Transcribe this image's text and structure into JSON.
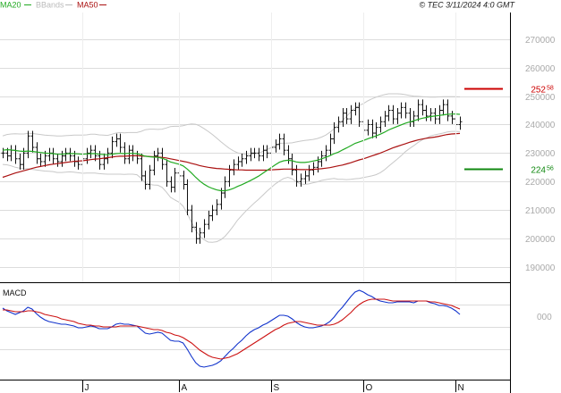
{
  "header": {
    "legend": [
      {
        "label": "MA20",
        "color": "#22aa22"
      },
      {
        "label": "BBands",
        "color": "#bbbbbb"
      },
      {
        "label": "MA50",
        "color": "#aa1111"
      }
    ],
    "timestamp": "© TEC 3/11/2024 4:0 GMT"
  },
  "chart_data": [
    {
      "type": "ohlc",
      "y_tick_labels": [
        "190000",
        "200000",
        "210000",
        "220000",
        "230000",
        "240000",
        "250000",
        "260000",
        "270000"
      ],
      "ylim": [
        185000,
        279000
      ],
      "x_tick_labels": [
        "J",
        "A",
        "S",
        "O",
        "N"
      ],
      "levels": [
        {
          "label": "252.58",
          "text_main": "252",
          "text_dec": "58",
          "value": 252580,
          "color": "#cc0000"
        },
        {
          "label": "224.56",
          "text_main": "224",
          "text_dec": "56",
          "value": 224560,
          "color": "#118811"
        }
      ],
      "closes": [
        230000,
        229000,
        231000,
        228000,
        226000,
        230000,
        236000,
        232000,
        228000,
        227000,
        229000,
        230000,
        228000,
        227000,
        229000,
        230000,
        229000,
        227000,
        226000,
        228000,
        230000,
        231000,
        229000,
        226000,
        228000,
        230000,
        234000,
        235000,
        232000,
        228000,
        231000,
        229000,
        228000,
        222000,
        219000,
        224000,
        229000,
        230000,
        226000,
        220000,
        218000,
        223000,
        222000,
        219000,
        210000,
        204000,
        200000,
        202000,
        205000,
        208000,
        210000,
        212000,
        216000,
        220000,
        224000,
        226000,
        227000,
        228000,
        229000,
        230000,
        230000,
        229000,
        231000,
        230000,
        232000,
        233000,
        235000,
        231000,
        228000,
        224000,
        220000,
        221000,
        222000,
        224000,
        225000,
        227000,
        229000,
        231000,
        235000,
        239000,
        241000,
        244000,
        242000,
        245000,
        246000,
        241000,
        238000,
        240000,
        237000,
        239000,
        241000,
        243000,
        245000,
        242000,
        244000,
        246000,
        244000,
        241000,
        243000,
        247000,
        245000,
        243000,
        244000,
        242000,
        245000,
        247000,
        243000,
        242000,
        240000,
        241000
      ],
      "ma20": [
        231000,
        231200,
        231100,
        230900,
        230700,
        230600,
        230700,
        230600,
        230400,
        230200,
        230000,
        229900,
        229800,
        229600,
        229600,
        229700,
        229800,
        229800,
        229700,
        229600,
        229700,
        229800,
        229800,
        229600,
        229500,
        229400,
        229600,
        229800,
        229900,
        229800,
        229900,
        229900,
        229800,
        229400,
        228900,
        228700,
        228600,
        228500,
        228200,
        227600,
        226900,
        226500,
        226100,
        225500,
        224400,
        223000,
        221500,
        220200,
        219100,
        218200,
        217600,
        217100,
        216800,
        216800,
        217100,
        217600,
        218300,
        218900,
        219600,
        220300,
        221100,
        221900,
        222900,
        223900,
        224900,
        225900,
        226800,
        227300,
        227500,
        227300,
        226900,
        226700,
        226700,
        226900,
        227200,
        227500,
        228000,
        228500,
        229100,
        229800,
        230300,
        231100,
        231800,
        232600,
        233400,
        233900,
        234400,
        235000,
        235500,
        236000,
        236600,
        237300,
        238100,
        238700,
        239300,
        239900,
        240500,
        240900,
        241300,
        241800,
        242200,
        242500,
        242800,
        243000,
        243200,
        243400,
        243600,
        243700,
        243700,
        243600
      ],
      "ma50": [
        221500,
        222000,
        222500,
        223000,
        223400,
        223800,
        224200,
        224600,
        225000,
        225300,
        225600,
        225900,
        226100,
        226300,
        226500,
        226700,
        226900,
        227100,
        227200,
        227300,
        227500,
        227700,
        227900,
        228000,
        228200,
        228400,
        228600,
        228800,
        228900,
        228900,
        229000,
        229100,
        229100,
        229000,
        228900,
        228800,
        228700,
        228600,
        228500,
        228300,
        228000,
        227700,
        227400,
        227100,
        226800,
        226400,
        226000,
        225600,
        225300,
        225000,
        224800,
        224600,
        224500,
        224400,
        224300,
        224200,
        224100,
        224100,
        224000,
        224000,
        224000,
        224000,
        224000,
        224000,
        224100,
        224200,
        224300,
        224400,
        224400,
        224400,
        224300,
        224200,
        224200,
        224200,
        224300,
        224400,
        224500,
        224700,
        224900,
        225200,
        225500,
        225800,
        226200,
        226600,
        227100,
        227600,
        228000,
        228500,
        229000,
        229500,
        230000,
        230600,
        231200,
        231800,
        232300,
        232800,
        233300,
        233800,
        234200,
        234600,
        234900,
        235200,
        235400,
        235600,
        235900,
        236200,
        236500,
        236700,
        236800,
        236900
      ],
      "bb_upper": [
        236000,
        236500,
        236700,
        236800,
        236700,
        236700,
        236900,
        236900,
        236700,
        236500,
        236300,
        236200,
        236100,
        236000,
        236000,
        236100,
        236200,
        236300,
        236300,
        236300,
        236400,
        236600,
        236600,
        236400,
        236300,
        236200,
        236600,
        237000,
        237200,
        237100,
        237200,
        237200,
        237200,
        237600,
        238200,
        238400,
        238400,
        238300,
        238400,
        238800,
        239300,
        239400,
        239400,
        239600,
        240000,
        240200,
        240100,
        239500,
        238600,
        237600,
        236500,
        235300,
        234000,
        232800,
        231700,
        230800,
        230100,
        229700,
        229500,
        229500,
        229700,
        230000,
        230600,
        231200,
        231900,
        232600,
        233400,
        233500,
        233500,
        233600,
        233900,
        234200,
        234400,
        234600,
        234800,
        235100,
        235600,
        236300,
        237300,
        238500,
        239800,
        241400,
        242900,
        244400,
        245800,
        246700,
        247400,
        248300,
        249000,
        249600,
        250100,
        250500,
        250800,
        250800,
        250800,
        250700,
        250500,
        250200,
        250000,
        249900,
        249800,
        249700,
        249600,
        249600,
        249700,
        249800,
        249800,
        249800,
        249800,
        249700
      ],
      "bb_lower": [
        226000,
        225900,
        225500,
        225000,
        224700,
        224500,
        224500,
        224300,
        224100,
        223900,
        223700,
        223600,
        223500,
        223200,
        223200,
        223300,
        223400,
        223300,
        223100,
        222900,
        223000,
        223000,
        223000,
        222800,
        222700,
        222600,
        222600,
        222600,
        222600,
        222500,
        222600,
        222600,
        222400,
        221200,
        219600,
        219000,
        218800,
        218700,
        218000,
        216400,
        214500,
        213600,
        212800,
        211400,
        208800,
        205800,
        202900,
        200900,
        199600,
        198800,
        198700,
        198900,
        199600,
        200800,
        202500,
        204400,
        206500,
        208100,
        209700,
        211100,
        212500,
        213800,
        215200,
        216600,
        217900,
        219200,
        220200,
        221100,
        221500,
        221000,
        219900,
        219200,
        219000,
        219200,
        219600,
        219900,
        220400,
        220700,
        220900,
        221100,
        220800,
        220800,
        220700,
        220800,
        221000,
        221100,
        221400,
        221700,
        222000,
        222400,
        223100,
        224100,
        225400,
        226600,
        227800,
        229100,
        230500,
        231600,
        232600,
        233700,
        234600,
        235300,
        236000,
        236400,
        236700,
        237000,
        237400,
        237600,
        237600,
        237500
      ]
    },
    {
      "type": "line",
      "title": "MACD",
      "y_tick_labels": [
        "000"
      ],
      "x_tick_labels": [
        "J",
        "A",
        "S",
        "O",
        "N"
      ],
      "series": [
        {
          "color": "#1133cc",
          "values": [
            900,
            600,
            400,
            200,
            400,
            600,
            1000,
            800,
            300,
            -100,
            -400,
            -600,
            -700,
            -800,
            -900,
            -900,
            -1000,
            -1100,
            -1300,
            -1300,
            -1200,
            -1100,
            -1200,
            -1400,
            -1400,
            -1400,
            -1200,
            -900,
            -800,
            -900,
            -900,
            -1000,
            -1100,
            -1500,
            -1900,
            -2000,
            -1900,
            -1800,
            -1900,
            -2300,
            -2700,
            -2800,
            -2800,
            -3000,
            -3700,
            -4500,
            -5200,
            -5600,
            -5700,
            -5600,
            -5500,
            -5300,
            -5000,
            -4500,
            -4000,
            -3600,
            -3100,
            -2700,
            -2200,
            -1800,
            -1500,
            -1300,
            -1000,
            -800,
            -500,
            -200,
            100,
            100,
            0,
            -300,
            -700,
            -1000,
            -1200,
            -1300,
            -1300,
            -1200,
            -1100,
            -900,
            -600,
            -100,
            500,
            1000,
            1600,
            2200,
            2700,
            2900,
            2700,
            2400,
            2200,
            1900,
            1700,
            1600,
            1500,
            1500,
            1600,
            1600,
            1600,
            1600,
            1500,
            1700,
            1700,
            1700,
            1500,
            1400,
            1200,
            1200,
            1100,
            900,
            600,
            200
          ]
        },
        {
          "color": "#cc1111",
          "values": [
            700,
            700,
            600,
            500,
            500,
            500,
            600,
            600,
            500,
            400,
            200,
            100,
            0,
            -100,
            -300,
            -400,
            -500,
            -600,
            -800,
            -900,
            -1000,
            -1000,
            -1100,
            -1100,
            -1200,
            -1200,
            -1200,
            -1200,
            -1100,
            -1100,
            -1100,
            -1100,
            -1100,
            -1200,
            -1300,
            -1400,
            -1500,
            -1500,
            -1600,
            -1800,
            -1900,
            -2100,
            -2200,
            -2400,
            -2700,
            -3000,
            -3400,
            -3800,
            -4100,
            -4400,
            -4600,
            -4700,
            -4800,
            -4700,
            -4600,
            -4400,
            -4200,
            -3900,
            -3600,
            -3300,
            -3000,
            -2700,
            -2400,
            -2100,
            -1800,
            -1500,
            -1300,
            -1000,
            -800,
            -700,
            -600,
            -600,
            -700,
            -800,
            -900,
            -1000,
            -1000,
            -1000,
            -1000,
            -900,
            -700,
            -400,
            0,
            400,
            900,
            1300,
            1600,
            1800,
            1900,
            1900,
            1900,
            1900,
            1800,
            1700,
            1700,
            1700,
            1700,
            1700,
            1700,
            1700,
            1700,
            1700,
            1600,
            1600,
            1500,
            1400,
            1300,
            1200,
            1000,
            800
          ]
        }
      ]
    }
  ]
}
